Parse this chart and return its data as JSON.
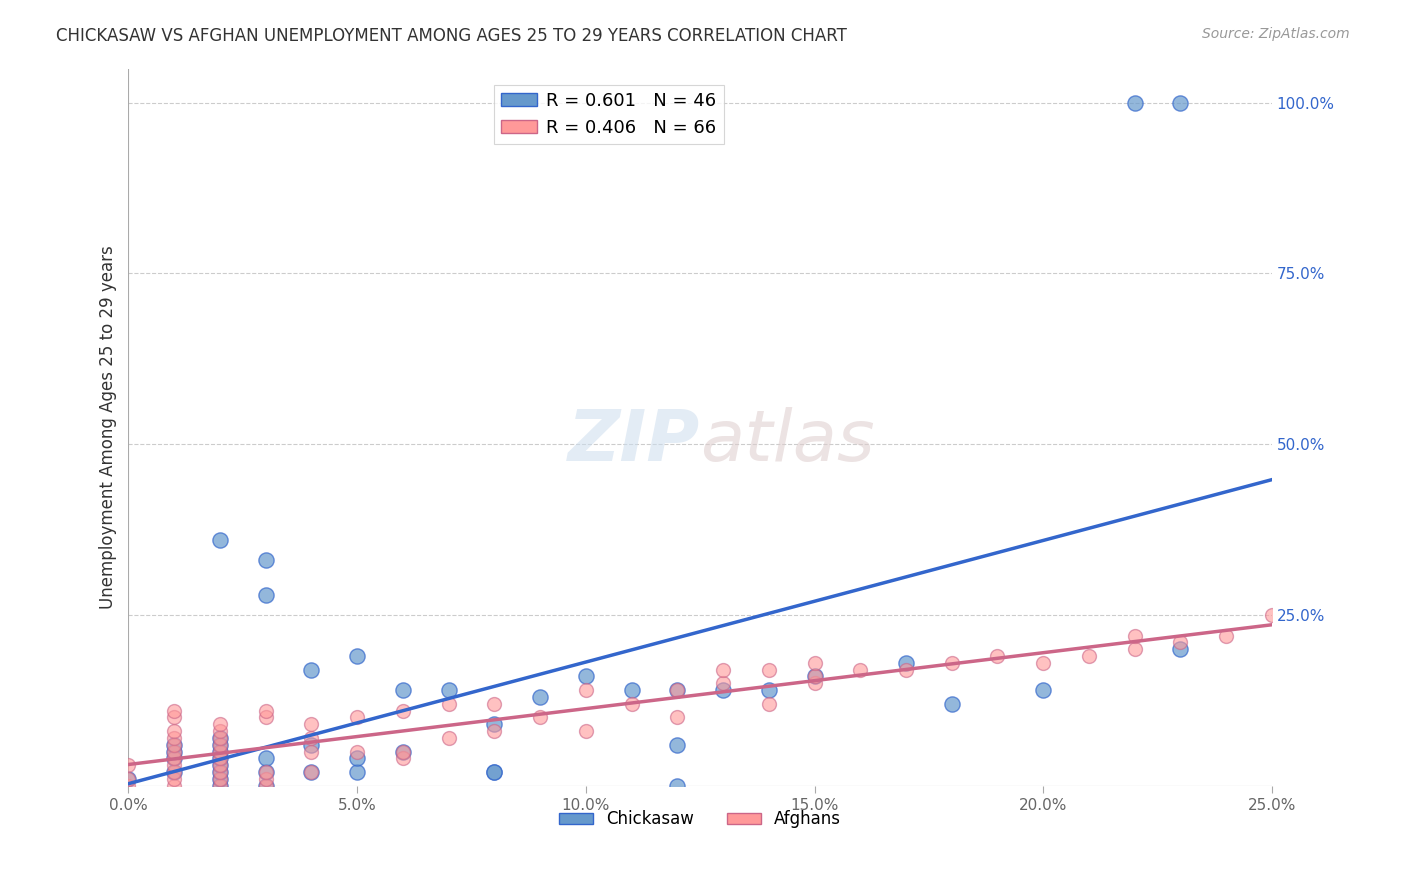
{
  "title": "CHICKASAW VS AFGHAN UNEMPLOYMENT AMONG AGES 25 TO 29 YEARS CORRELATION CHART",
  "source": "Source: ZipAtlas.com",
  "ylabel": "Unemployment Among Ages 25 to 29 years",
  "xlabel": "",
  "xlim": [
    0.0,
    0.25
  ],
  "ylim": [
    0.0,
    1.05
  ],
  "xtick_labels": [
    "0.0%",
    "5.0%",
    "10.0%",
    "15.0%",
    "20.0%",
    "25.0%"
  ],
  "xtick_vals": [
    0.0,
    0.05,
    0.1,
    0.15,
    0.2,
    0.25
  ],
  "ytick_labels": [
    "100.0%",
    "75.0%",
    "50.0%",
    "25.0%"
  ],
  "ytick_vals": [
    1.0,
    0.75,
    0.5,
    0.25
  ],
  "chickasaw_R": "0.601",
  "chickasaw_N": "46",
  "afghan_R": "0.406",
  "afghan_N": "66",
  "legend_labels": [
    "Chickasaw",
    "Afghans"
  ],
  "watermark_zip": "ZIP",
  "watermark_atlas": "atlas",
  "blue_color": "#6699CC",
  "pink_color": "#FF9999",
  "blue_line_color": "#3366CC",
  "pink_line_color": "#CC6688",
  "chickasaw_x": [
    0.0,
    0.01,
    0.01,
    0.01,
    0.01,
    0.02,
    0.02,
    0.02,
    0.02,
    0.02,
    0.02,
    0.02,
    0.02,
    0.02,
    0.03,
    0.03,
    0.03,
    0.03,
    0.03,
    0.04,
    0.04,
    0.04,
    0.05,
    0.05,
    0.05,
    0.06,
    0.06,
    0.07,
    0.08,
    0.08,
    0.08,
    0.09,
    0.1,
    0.11,
    0.12,
    0.12,
    0.12,
    0.13,
    0.14,
    0.15,
    0.17,
    0.18,
    0.2,
    0.22,
    0.23,
    0.23
  ],
  "chickasaw_y": [
    0.01,
    0.02,
    0.04,
    0.05,
    0.06,
    0.0,
    0.01,
    0.02,
    0.03,
    0.04,
    0.05,
    0.06,
    0.07,
    0.36,
    0.0,
    0.02,
    0.04,
    0.28,
    0.33,
    0.02,
    0.06,
    0.17,
    0.02,
    0.04,
    0.19,
    0.05,
    0.14,
    0.14,
    0.02,
    0.02,
    0.09,
    0.13,
    0.16,
    0.14,
    0.0,
    0.06,
    0.14,
    0.14,
    0.14,
    0.16,
    0.18,
    0.12,
    0.14,
    1.0,
    1.0,
    0.2
  ],
  "afghan_x": [
    0.0,
    0.0,
    0.0,
    0.01,
    0.01,
    0.01,
    0.01,
    0.01,
    0.01,
    0.01,
    0.01,
    0.01,
    0.01,
    0.01,
    0.02,
    0.02,
    0.02,
    0.02,
    0.02,
    0.02,
    0.02,
    0.02,
    0.02,
    0.02,
    0.03,
    0.03,
    0.03,
    0.03,
    0.03,
    0.04,
    0.04,
    0.04,
    0.04,
    0.05,
    0.05,
    0.06,
    0.06,
    0.06,
    0.07,
    0.07,
    0.08,
    0.08,
    0.09,
    0.1,
    0.1,
    0.11,
    0.12,
    0.12,
    0.13,
    0.13,
    0.14,
    0.14,
    0.15,
    0.15,
    0.15,
    0.16,
    0.17,
    0.18,
    0.19,
    0.2,
    0.21,
    0.22,
    0.22,
    0.23,
    0.24,
    0.25
  ],
  "afghan_y": [
    0.0,
    0.01,
    0.03,
    0.0,
    0.01,
    0.02,
    0.03,
    0.04,
    0.05,
    0.06,
    0.07,
    0.08,
    0.1,
    0.11,
    0.0,
    0.01,
    0.02,
    0.03,
    0.04,
    0.05,
    0.06,
    0.07,
    0.08,
    0.09,
    0.0,
    0.01,
    0.02,
    0.1,
    0.11,
    0.02,
    0.05,
    0.07,
    0.09,
    0.05,
    0.1,
    0.04,
    0.05,
    0.11,
    0.07,
    0.12,
    0.08,
    0.12,
    0.1,
    0.08,
    0.14,
    0.12,
    0.1,
    0.14,
    0.15,
    0.17,
    0.12,
    0.17,
    0.15,
    0.16,
    0.18,
    0.17,
    0.17,
    0.18,
    0.19,
    0.18,
    0.19,
    0.2,
    0.22,
    0.21,
    0.22,
    0.25
  ],
  "grid_color": "#CCCCCC",
  "background_color": "#FFFFFF"
}
